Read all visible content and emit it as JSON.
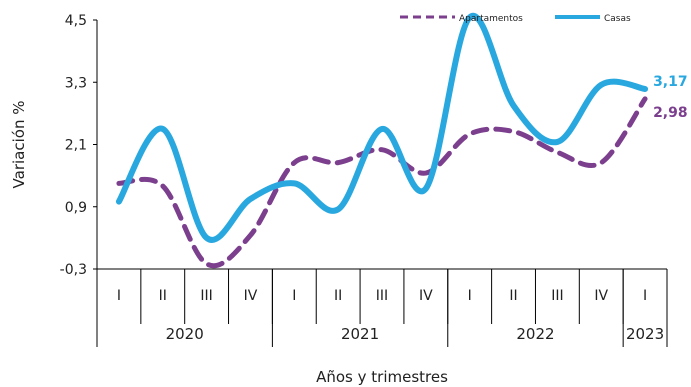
{
  "colors": {
    "apartamentos": "#7B3F8E",
    "casas": "#29A8E0",
    "axis": "#000000",
    "text": "#222222"
  },
  "chart_data": {
    "type": "line",
    "title": "",
    "xlabel": "Años y trimestres",
    "ylabel": "Variación %",
    "ylim": [
      -0.3,
      4.5
    ],
    "yticks": [
      "-0,3",
      "0,9",
      "2,1",
      "3,3",
      "4,5"
    ],
    "ytick_values": [
      -0.3,
      0.9,
      2.1,
      3.3,
      4.5
    ],
    "grid": false,
    "legend": "top-right",
    "categories": [
      "I",
      "II",
      "III",
      "IV",
      "I",
      "II",
      "III",
      "IV",
      "I",
      "II",
      "III",
      "IV",
      "I"
    ],
    "years": [
      {
        "label": "2020",
        "quarters": 4
      },
      {
        "label": "2021",
        "quarters": 4
      },
      {
        "label": "2022",
        "quarters": 4
      },
      {
        "label": "2023",
        "quarters": 1
      }
    ],
    "series": [
      {
        "name": "Apartamentos",
        "style": "dashed",
        "color": "#7B3F8E",
        "values": [
          1.35,
          1.3,
          -0.2,
          0.35,
          1.75,
          1.75,
          2.0,
          1.55,
          2.3,
          2.35,
          1.95,
          1.75,
          2.98
        ],
        "end_label": "2,98"
      },
      {
        "name": "Casas",
        "style": "solid",
        "color": "#29A8E0",
        "values": [
          1.0,
          2.4,
          0.3,
          1.05,
          1.35,
          0.85,
          2.4,
          1.25,
          4.55,
          2.85,
          2.15,
          3.25,
          3.17
        ],
        "end_label": "3,17"
      }
    ]
  }
}
